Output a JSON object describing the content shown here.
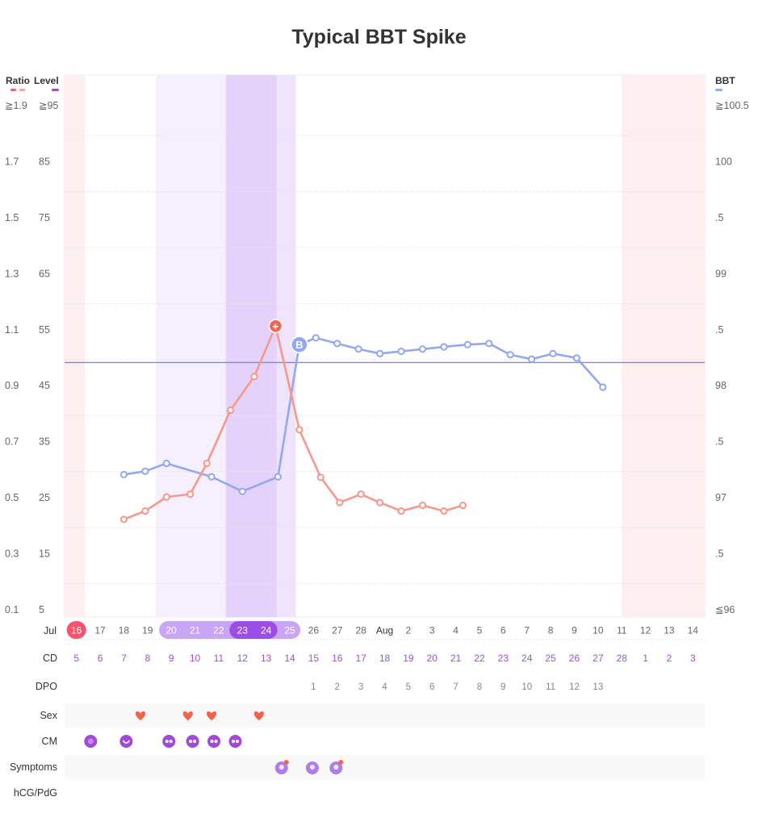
{
  "title": "Typical BBT Spike",
  "legend": {
    "ratio": "Ratio",
    "level": "Level",
    "bbt": "BBT"
  },
  "colors": {
    "ratio_dark": "#e8606a",
    "ratio_light": "#f4a48e",
    "level": "#a24ad6",
    "bbt": "#94a8f0",
    "ratio_line": "#f7998a",
    "threshold": "#7f88dc",
    "pink_band": "#fdeef0",
    "light_purple": "#f6f0fe",
    "mid_purple": "#efe3fd",
    "dark_purple": "#e4d2fb",
    "cycle_day": "#9d4fdb",
    "sex_heart": "#f4634d",
    "cm_icon": "#a24ad6",
    "symptom_icon": "#b07cf0"
  },
  "y_left_ratio_ticks": [
    "≧1.9",
    "1.7",
    "1.5",
    "1.3",
    "1.1",
    "0.9",
    "0.7",
    "0.5",
    "0.3",
    "0.1"
  ],
  "y_left_level_ticks": [
    "≧95",
    "85",
    "75",
    "65",
    "55",
    "45",
    "35",
    "25",
    "15",
    "5"
  ],
  "y_right_bbt_ticks": [
    "≧100.5",
    "100",
    ".5",
    "99",
    ".5",
    "98",
    ".5",
    "97",
    ".5",
    "≦96"
  ],
  "chart_data": {
    "type": "line",
    "title": "Typical BBT Spike",
    "date_labels": [
      "16",
      "17",
      "18",
      "19",
      "20",
      "21",
      "22",
      "23",
      "24",
      "25",
      "26",
      "27",
      "28",
      "Aug",
      "2",
      "3",
      "4",
      "5",
      "6",
      "7",
      "8",
      "9",
      "10",
      "11",
      "12",
      "13",
      "14"
    ],
    "month_label": "Jul",
    "cycle_days": [
      "5",
      "6",
      "7",
      "8",
      "9",
      "10",
      "11",
      "12",
      "13",
      "14",
      "15",
      "16",
      "17",
      "18",
      "19",
      "20",
      "21",
      "22",
      "23",
      "24",
      "25",
      "26",
      "27",
      "28",
      "1",
      "2",
      "3"
    ],
    "dpo": [
      "",
      "",
      "",
      "",
      "",
      "",
      "",
      "",
      "",
      "",
      "1",
      "2",
      "3",
      "4",
      "5",
      "6",
      "7",
      "8",
      "9",
      "10",
      "11",
      "12",
      "13",
      "",
      "",
      "",
      ""
    ],
    "ratio_axis": {
      "min": 0.1,
      "max": 1.9
    },
    "level_axis": {
      "min": 5,
      "max": 95
    },
    "bbt_axis": {
      "min": 96,
      "max": 100.5
    },
    "series": [
      {
        "name": "BBT",
        "axis": "bbt",
        "points": [
          {
            "x": 2.5,
            "y": 97.2
          },
          {
            "x": 3.4,
            "y": 97.23
          },
          {
            "x": 4.3,
            "y": 97.3
          },
          {
            "x": 6.2,
            "y": 97.18
          },
          {
            "x": 7.5,
            "y": 97.05
          },
          {
            "x": 9.0,
            "y": 97.18
          },
          {
            "x": 9.9,
            "y": 98.36
          },
          {
            "x": 10.6,
            "y": 98.42
          },
          {
            "x": 11.5,
            "y": 98.37
          },
          {
            "x": 12.4,
            "y": 98.32
          },
          {
            "x": 13.3,
            "y": 98.28
          },
          {
            "x": 14.2,
            "y": 98.3
          },
          {
            "x": 15.1,
            "y": 98.32
          },
          {
            "x": 16.0,
            "y": 98.34
          },
          {
            "x": 17.0,
            "y": 98.36
          },
          {
            "x": 17.9,
            "y": 98.37
          },
          {
            "x": 18.8,
            "y": 98.27
          },
          {
            "x": 19.7,
            "y": 98.23
          },
          {
            "x": 20.6,
            "y": 98.28
          },
          {
            "x": 21.6,
            "y": 98.24
          },
          {
            "x": 22.7,
            "y": 97.98
          }
        ],
        "marker": {
          "index": 6,
          "label": "B"
        }
      },
      {
        "name": "Ratio",
        "axis": "ratio",
        "points": [
          {
            "x": 2.5,
            "y": 0.42
          },
          {
            "x": 3.4,
            "y": 0.45
          },
          {
            "x": 4.3,
            "y": 0.5
          },
          {
            "x": 5.3,
            "y": 0.51
          },
          {
            "x": 6.0,
            "y": 0.62
          },
          {
            "x": 7.0,
            "y": 0.81
          },
          {
            "x": 8.0,
            "y": 0.93
          },
          {
            "x": 8.9,
            "y": 1.11
          },
          {
            "x": 9.9,
            "y": 0.74
          },
          {
            "x": 10.8,
            "y": 0.57
          },
          {
            "x": 11.6,
            "y": 0.48
          },
          {
            "x": 12.5,
            "y": 0.51
          },
          {
            "x": 13.3,
            "y": 0.48
          },
          {
            "x": 14.2,
            "y": 0.45
          },
          {
            "x": 15.1,
            "y": 0.47
          },
          {
            "x": 16.0,
            "y": 0.45
          },
          {
            "x": 16.8,
            "y": 0.47
          }
        ],
        "marker": {
          "index": 7,
          "label": "+"
        }
      }
    ],
    "threshold_bbt": 98.2,
    "shaded_regions": [
      {
        "from": 0,
        "to": 1,
        "kind": "pink"
      },
      {
        "from": 4,
        "to": 7,
        "kind": "light_purple"
      },
      {
        "from": 7,
        "to": 9,
        "kind": "dark_purple"
      },
      {
        "from": 9,
        "to": 10,
        "kind": "mid_purple"
      },
      {
        "from": 24,
        "to": 27,
        "kind": "pink"
      }
    ],
    "highlighted_dates": {
      "period": [
        0
      ],
      "fertile": [
        4,
        5,
        6,
        7,
        8,
        9
      ],
      "peak": [
        7,
        8
      ]
    }
  },
  "rows": {
    "cd": "CD",
    "dpo": "DPO",
    "sex": "Sex",
    "cm": "CM",
    "symptoms": "Symptoms",
    "hcg": "hCG/PdG"
  },
  "sex_days": [
    3,
    5,
    6,
    8
  ],
  "cm_icons": [
    {
      "day": 1,
      "icon": "dot-icon"
    },
    {
      "day": 2.5,
      "icon": "smile-icon"
    },
    {
      "day": 4.3,
      "icon": "drops-icon"
    },
    {
      "day": 5.3,
      "icon": "drops-icon"
    },
    {
      "day": 6.2,
      "icon": "drops-icon"
    },
    {
      "day": 7.1,
      "icon": "drops-icon"
    }
  ],
  "symptom_icons": [
    {
      "day": 8.9,
      "icon": "cramp-icon"
    },
    {
      "day": 10.2,
      "icon": "head-icon"
    },
    {
      "day": 11.2,
      "icon": "cramp-icon"
    }
  ]
}
